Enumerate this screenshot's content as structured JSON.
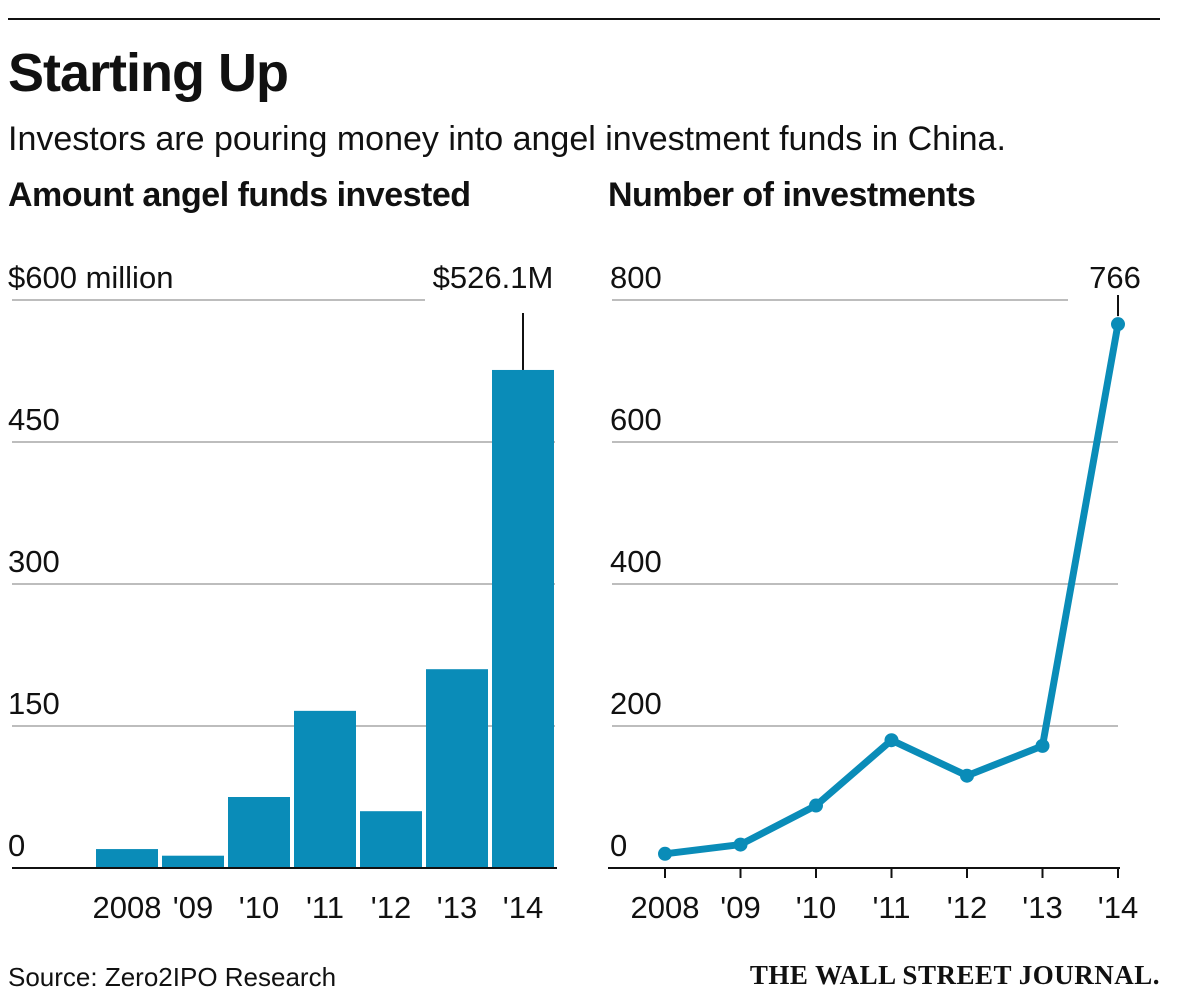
{
  "header": {
    "title": "Starting Up",
    "subtitle": "Investors are pouring money into angel investment funds in China."
  },
  "colors": {
    "accent": "#0a8cb8",
    "grid": "#bdbdbd",
    "text": "#111111"
  },
  "chart_data": [
    {
      "type": "bar",
      "title": "Amount angel funds invested",
      "categories": [
        "2008",
        "'09",
        "'10",
        "'11",
        "'12",
        "'13",
        "'14"
      ],
      "values": [
        20,
        13,
        75,
        166,
        60,
        210,
        526.1
      ],
      "ylim": [
        0,
        600
      ],
      "yticks": [
        0,
        150,
        300,
        450,
        600
      ],
      "ytick_labels": [
        "0",
        "150",
        "300",
        "450",
        "$600 million"
      ],
      "annotation": {
        "index": 6,
        "label": "$526.1M"
      },
      "xlabel": "",
      "ylabel": ""
    },
    {
      "type": "line",
      "title": "Number of investments",
      "categories": [
        "2008",
        "'09",
        "'10",
        "'11",
        "'12",
        "'13",
        "'14"
      ],
      "values": [
        20,
        33,
        88,
        180,
        130,
        172,
        766
      ],
      "ylim": [
        0,
        800
      ],
      "yticks": [
        0,
        200,
        400,
        600,
        800
      ],
      "ytick_labels": [
        "0",
        "200",
        "400",
        "600",
        "800"
      ],
      "annotation": {
        "index": 6,
        "label": "766"
      },
      "xlabel": "",
      "ylabel": ""
    }
  ],
  "footer": {
    "source": "Source: Zero2IPO Research",
    "publisher": "THE WALL STREET JOURNAL."
  }
}
